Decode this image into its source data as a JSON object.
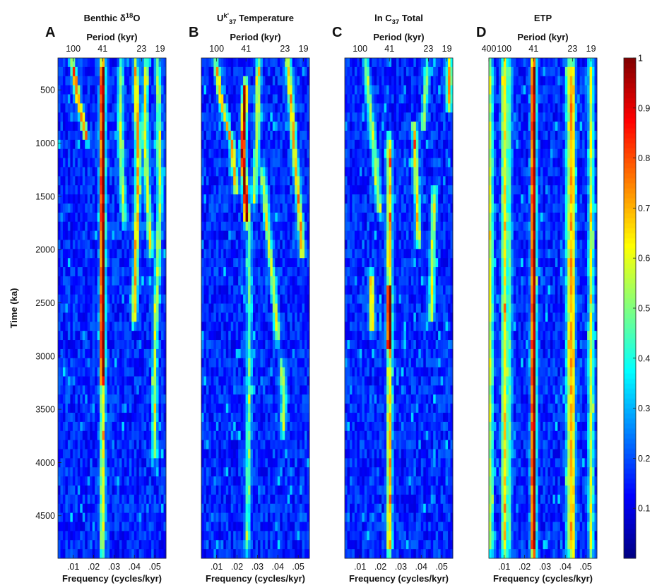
{
  "chart_data": {
    "type": "heatmap",
    "ylabel": "Time (ka)",
    "ylim": [
      200,
      4900
    ],
    "ytick_values": [
      500,
      1000,
      1500,
      2000,
      2500,
      3000,
      3500,
      4000,
      4500
    ],
    "ytick_labels": [
      "500",
      "1000",
      "1500",
      "2000",
      "2500",
      "3000",
      "3500",
      "4000",
      "4500"
    ],
    "xlim": [
      0.0025,
      0.0555
    ],
    "colorbar": {
      "range": [
        0,
        1
      ],
      "tick_values": [
        0.1,
        0.2,
        0.3,
        0.4,
        0.5,
        0.6,
        0.7,
        0.8,
        0.9,
        1
      ],
      "tick_labels": [
        "0.1",
        "0.2",
        "0.3",
        "0.4",
        "0.5",
        "0.6",
        "0.7",
        "0.8",
        "0.9",
        "1"
      ]
    },
    "panels": [
      {
        "letter": "A",
        "title": "Benthic δ",
        "title_sup": "18",
        "title_tail": "O",
        "top_axis_label": "Period (kyr)",
        "top_ticks": [
          {
            "label": "100",
            "freq": 0.01
          },
          {
            "label": "41",
            "freq": 0.0244
          },
          {
            "label": "23",
            "freq": 0.0435
          },
          {
            "label": "19",
            "freq": 0.0526
          }
        ],
        "bottom_ticks": [
          {
            "label": ".01",
            "freq": 0.01
          },
          {
            "label": ".02",
            "freq": 0.02
          },
          {
            "label": ".03",
            "freq": 0.03
          },
          {
            "label": ".04",
            "freq": 0.04
          },
          {
            "label": ".05",
            "freq": 0.05
          }
        ],
        "xlabel": "Frequency (cycles/kyr)",
        "ridges": [
          {
            "freqs": [
              [
                200,
                0.0244
              ],
              [
                4900,
                0.0244
              ]
            ],
            "span": [
              200,
              3300
            ],
            "peak": 0.92
          },
          {
            "freqs": [
              [
                200,
                0.0244
              ],
              [
                4900,
                0.0244
              ]
            ],
            "span": [
              3300,
              4900
            ],
            "peak": 0.45
          },
          {
            "freqs": [
              [
                200,
                0.0093
              ],
              [
                600,
                0.0125
              ],
              [
                1000,
                0.017
              ]
            ],
            "span": [
              200,
              1000
            ],
            "peak": 0.62
          },
          {
            "freqs": [
              [
                200,
                0.0405
              ],
              [
                1200,
                0.042
              ],
              [
                2600,
                0.04
              ]
            ],
            "span": [
              200,
              2700
            ],
            "peak": 0.55
          },
          {
            "freqs": [
              [
                200,
                0.0458
              ],
              [
                900,
                0.045
              ],
              [
                2000,
                0.048
              ]
            ],
            "span": [
              200,
              2100
            ],
            "peak": 0.45
          },
          {
            "freqs": [
              [
                200,
                0.0335
              ],
              [
                900,
                0.033
              ],
              [
                1800,
                0.035
              ]
            ],
            "span": [
              200,
              1800
            ],
            "peak": 0.4
          },
          {
            "freqs": [
              [
                200,
                0.0515
              ],
              [
                1500,
                0.0525
              ],
              [
                3000,
                0.05
              ]
            ],
            "span": [
              200,
              4000
            ],
            "peak": 0.38
          }
        ]
      },
      {
        "letter": "B",
        "title": "U",
        "title_sup": "k'",
        "title_sub": "37",
        "title_tail": " Temperature",
        "top_axis_label": "Period (kyr)",
        "top_ticks": [
          {
            "label": "100",
            "freq": 0.01
          },
          {
            "label": "41",
            "freq": 0.0244
          },
          {
            "label": "23",
            "freq": 0.0435
          },
          {
            "label": "19",
            "freq": 0.0526
          }
        ],
        "bottom_ticks": [
          {
            "label": ".01",
            "freq": 0.01
          },
          {
            "label": ".02",
            "freq": 0.02
          },
          {
            "label": ".03",
            "freq": 0.03
          },
          {
            "label": ".04",
            "freq": 0.04
          },
          {
            "label": ".05",
            "freq": 0.05
          }
        ],
        "xlabel": "Frequency (cycles/kyr)",
        "ridges": [
          {
            "freqs": [
              [
                200,
                0.0244
              ],
              [
                700,
                0.0235
              ],
              [
                1100,
                0.0228
              ],
              [
                1600,
                0.0245
              ],
              [
                2000,
                0.026
              ]
            ],
            "span": [
              400,
              1800
            ],
            "peak": 0.88
          },
          {
            "freqs": [
              [
                200,
                0.0095
              ],
              [
                600,
                0.012
              ],
              [
                1000,
                0.0175
              ],
              [
                1500,
                0.02
              ]
            ],
            "span": [
              200,
              1500
            ],
            "peak": 0.55
          },
          {
            "freqs": [
              [
                200,
                0.045
              ],
              [
                800,
                0.047
              ],
              [
                1500,
                0.05
              ],
              [
                2000,
                0.052
              ]
            ],
            "span": [
              200,
              2100
            ],
            "peak": 0.58
          },
          {
            "freqs": [
              [
                1200,
                0.032
              ],
              [
                2000,
                0.036
              ],
              [
                2800,
                0.04
              ]
            ],
            "span": [
              1200,
              2900
            ],
            "peak": 0.45
          },
          {
            "freqs": [
              [
                3000,
                0.0415
              ],
              [
                3400,
                0.043
              ],
              [
                3800,
                0.0425
              ]
            ],
            "span": [
              3000,
              3800
            ],
            "peak": 0.42
          },
          {
            "freqs": [
              [
                200,
                0.0305
              ],
              [
                900,
                0.03
              ],
              [
                1600,
                0.028
              ]
            ],
            "span": [
              200,
              1600
            ],
            "peak": 0.42
          },
          {
            "freqs": [
              [
                200,
                0.026
              ],
              [
                3000,
                0.026
              ],
              [
                4900,
                0.025
              ]
            ],
            "span": [
              1800,
              4900
            ],
            "peak": 0.3
          }
        ]
      },
      {
        "letter": "C",
        "title": "ln C",
        "title_sub": "37",
        "title_tail": " Total",
        "top_axis_label": "Period (kyr)",
        "top_ticks": [
          {
            "label": "100",
            "freq": 0.01
          },
          {
            "label": "41",
            "freq": 0.0244
          },
          {
            "label": "23",
            "freq": 0.0435
          },
          {
            "label": "19",
            "freq": 0.0526
          }
        ],
        "bottom_ticks": [
          {
            "label": ".01",
            "freq": 0.01
          },
          {
            "label": ".02",
            "freq": 0.02
          },
          {
            "label": ".03",
            "freq": 0.03
          },
          {
            "label": ".04",
            "freq": 0.04
          },
          {
            "label": ".05",
            "freq": 0.05
          }
        ],
        "xlabel": "Frequency (cycles/kyr)",
        "ridges": [
          {
            "freqs": [
              [
                200,
                0.0244
              ],
              [
                4900,
                0.0244
              ]
            ],
            "span": [
              2300,
              3000
            ],
            "peak": 0.95
          },
          {
            "freqs": [
              [
                200,
                0.0244
              ],
              [
                4900,
                0.0244
              ]
            ],
            "span": [
              900,
              2300
            ],
            "peak": 0.55
          },
          {
            "freqs": [
              [
                200,
                0.0244
              ],
              [
                4900,
                0.0244
              ]
            ],
            "span": [
              3000,
              4900
            ],
            "peak": 0.55
          },
          {
            "freqs": [
              [
                200,
                0.054
              ],
              [
                700,
                0.0535
              ]
            ],
            "span": [
              200,
              700
            ],
            "peak": 0.62
          },
          {
            "freqs": [
              [
                800,
                0.0365
              ],
              [
                1300,
                0.0375
              ],
              [
                2000,
                0.039
              ]
            ],
            "span": [
              800,
              2000
            ],
            "peak": 0.5
          },
          {
            "freqs": [
              [
                2200,
                0.0155
              ],
              [
                2700,
                0.016
              ]
            ],
            "span": [
              2200,
              2800
            ],
            "peak": 0.55
          },
          {
            "freqs": [
              [
                1400,
                0.0465
              ],
              [
                2100,
                0.0455
              ],
              [
                2700,
                0.045
              ]
            ],
            "span": [
              1400,
              2700
            ],
            "peak": 0.45
          },
          {
            "freqs": [
              [
                200,
                0.0125
              ],
              [
                1000,
                0.0165
              ],
              [
                1700,
                0.02
              ]
            ],
            "span": [
              200,
              1700
            ],
            "peak": 0.42
          },
          {
            "freqs": [
              [
                200,
                0.043
              ],
              [
                900,
                0.041
              ]
            ],
            "span": [
              200,
              900
            ],
            "peak": 0.38
          }
        ]
      },
      {
        "letter": "D",
        "title": "ETP",
        "top_axis_label": "Period (kyr)",
        "top_ticks": [
          {
            "label": "400",
            "freq": 0.0025
          },
          {
            "label": "100",
            "freq": 0.01
          },
          {
            "label": "41",
            "freq": 0.0244
          },
          {
            "label": "23",
            "freq": 0.0435
          },
          {
            "label": "19",
            "freq": 0.0526
          }
        ],
        "bottom_ticks": [
          {
            "label": ".01",
            "freq": 0.01
          },
          {
            "label": ".02",
            "freq": 0.02
          },
          {
            "label": ".03",
            "freq": 0.03
          },
          {
            "label": ".04",
            "freq": 0.04
          },
          {
            "label": ".05",
            "freq": 0.05
          }
        ],
        "xlabel": "Frequency (cycles/kyr)",
        "ridges": [
          {
            "freqs": [
              [
                200,
                0.0244
              ],
              [
                4900,
                0.0244
              ]
            ],
            "span": [
              200,
              4900
            ],
            "peak": 0.9
          },
          {
            "freqs": [
              [
                200,
                0.0435
              ],
              [
                4900,
                0.0435
              ]
            ],
            "span": [
              200,
              4900
            ],
            "peak": 0.55
          },
          {
            "freqs": [
              [
                200,
                0.0526
              ],
              [
                4900,
                0.0526
              ]
            ],
            "span": [
              200,
              4900
            ],
            "peak": 0.42
          },
          {
            "freqs": [
              [
                200,
                0.01
              ],
              [
                4900,
                0.01
              ]
            ],
            "span": [
              200,
              4900
            ],
            "peak": 0.48
          },
          {
            "freqs": [
              [
                200,
                0.0033
              ],
              [
                4900,
                0.0033
              ]
            ],
            "span": [
              200,
              4900
            ],
            "peak": 0.4
          },
          {
            "freqs": [
              [
                200,
                0.0415
              ],
              [
                4900,
                0.0415
              ]
            ],
            "span": [
              200,
              4900
            ],
            "peak": 0.32
          },
          {
            "freqs": [
              [
                200,
                0.0125
              ],
              [
                4900,
                0.0125
              ]
            ],
            "span": [
              200,
              4900
            ],
            "peak": 0.28
          }
        ]
      }
    ]
  }
}
